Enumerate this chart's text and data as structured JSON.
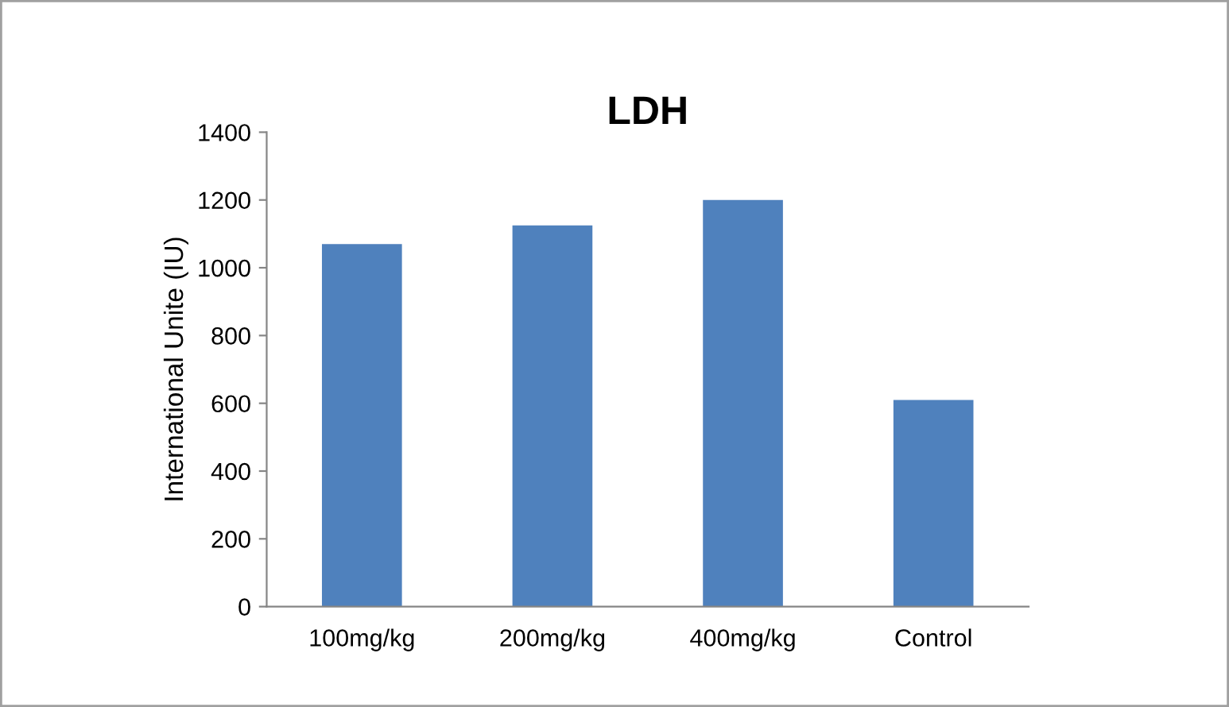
{
  "chart_data": {
    "type": "bar",
    "title": "LDH",
    "ylabel": "International Unite (IU)",
    "categories": [
      "100mg/kg",
      "200mg/kg",
      "400mg/kg",
      "Control"
    ],
    "values": [
      1070,
      1125,
      1200,
      610
    ],
    "color": "#4f81bd",
    "ylim": [
      0,
      1400
    ],
    "yticks": [
      0,
      200,
      400,
      600,
      800,
      1000,
      1200,
      1400
    ],
    "grid": false,
    "legend": false
  }
}
